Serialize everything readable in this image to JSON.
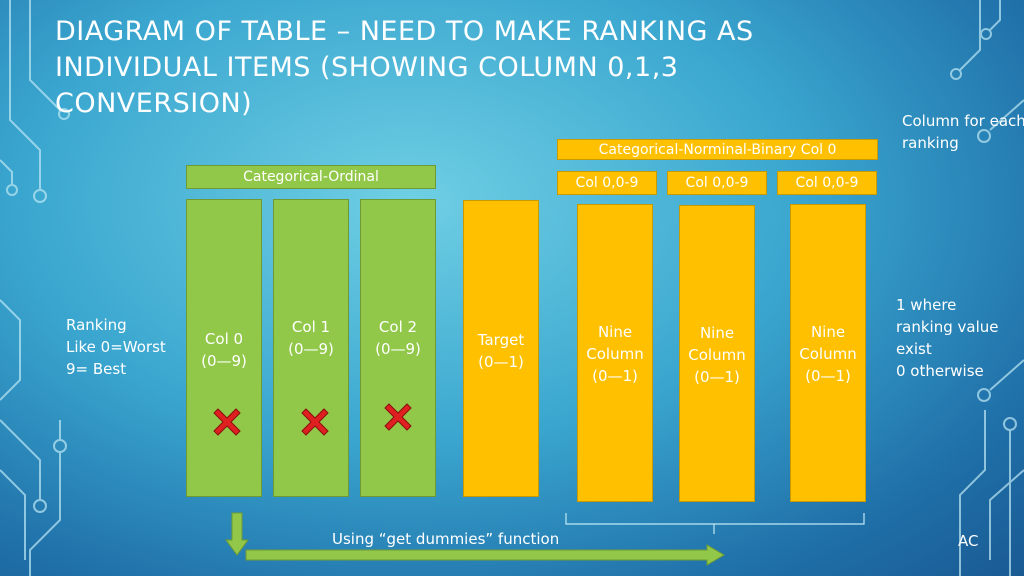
{
  "title": "Diagram of table – need to make ranking as individual items (showing column 0,1,3 conversion)",
  "left_note": {
    "line1": "Ranking",
    "line2": "Like 0=Worst",
    "line3": "9= Best"
  },
  "ordinal_header": "Categorical-Ordinal",
  "ordinal_columns": [
    {
      "name": "Col 0",
      "range": "(0—9)"
    },
    {
      "name": "Col 1",
      "range": "(0—9)"
    },
    {
      "name": "Col 2",
      "range": "(0—9)"
    }
  ],
  "target_column": {
    "name": "Target",
    "range": "(0—1)"
  },
  "binary_header": "Categorical-Norminal-Binary  Col 0",
  "binary_subheaders": [
    "Col 0,0-9",
    "Col 0,0-9",
    "Col 0,0-9"
  ],
  "binary_columns": [
    {
      "line1": "Nine",
      "line2": "Column",
      "range": "(0—1)"
    },
    {
      "line1": "Nine",
      "line2": "Column",
      "range": "(0—1)"
    },
    {
      "line1": "Nine",
      "line2": "Column",
      "range": "(0—1)"
    }
  ],
  "right_note_top": {
    "line1": "Column for each",
    "line2": "ranking"
  },
  "right_note_mid": {
    "line1": "1 where",
    "line2": "ranking value",
    "line3": "exist",
    "line4": "0 otherwise"
  },
  "arrow_label": "Using “get dummies” function",
  "footer": "AC",
  "colors": {
    "green": "#92c84a",
    "orange": "#ffc000",
    "cross": "#e02020"
  }
}
